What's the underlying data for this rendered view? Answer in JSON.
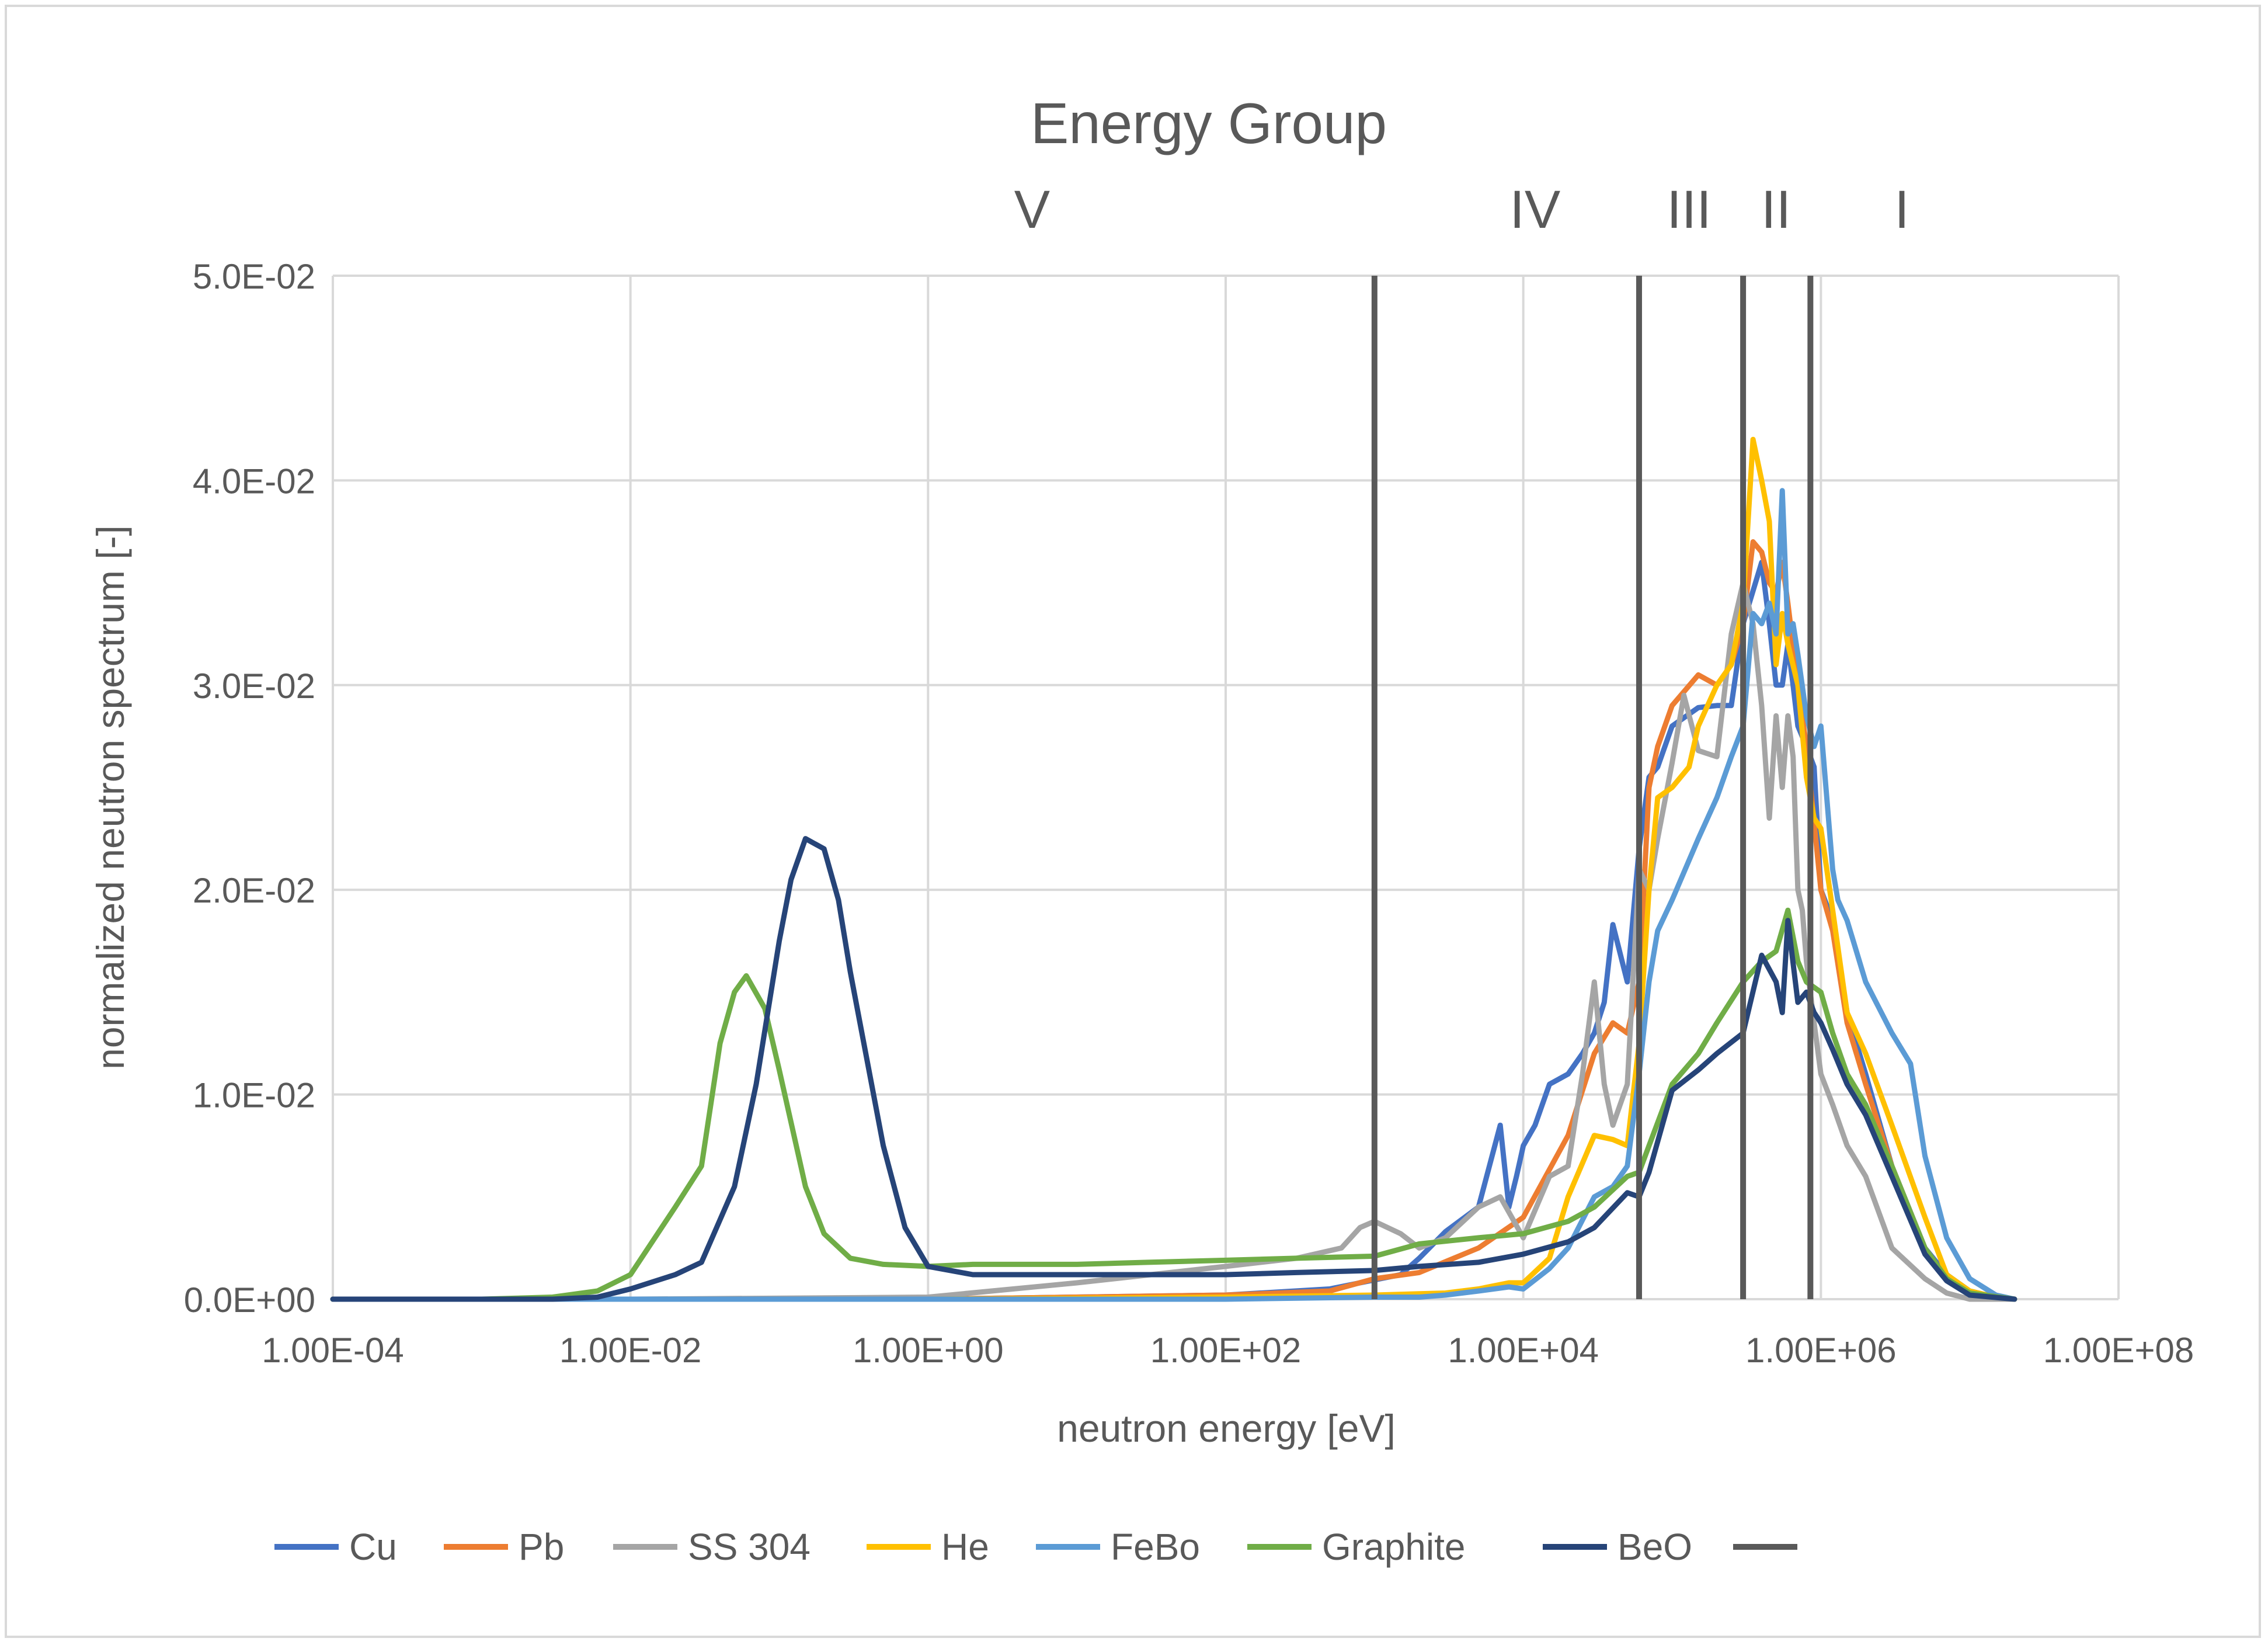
{
  "chart_data": {
    "type": "line",
    "title": "Energy Group",
    "group_labels": [
      {
        "label": "V",
        "energy": 5.0
      },
      {
        "label": "IV",
        "energy": 12000
      },
      {
        "label": "III",
        "energy": 130000
      },
      {
        "label": "II",
        "energy": 500000
      },
      {
        "label": "I",
        "energy": 3500000
      }
    ],
    "group_boundaries": [
      1000,
      60000,
      300000,
      850000
    ],
    "xlabel": "neutron energy [eV]",
    "ylabel": "normalized neutron spectrum [-]",
    "xscale": "log",
    "xlim": [
      0.0001,
      100000000
    ],
    "ylim": [
      0,
      0.05
    ],
    "x_ticks": [
      0.0001,
      0.01,
      1,
      100,
      10000,
      1000000,
      100000000
    ],
    "x_tick_labels": [
      "1.00E-04",
      "1.00E-02",
      "1.00E+00",
      "1.00E+02",
      "1.00E+04",
      "1.00E+06",
      "1.00E+08"
    ],
    "y_ticks": [
      0,
      0.01,
      0.02,
      0.03,
      0.04,
      0.05
    ],
    "y_tick_labels": [
      "0.0E+00",
      "1.0E-02",
      "2.0E-02",
      "3.0E-02",
      "4.0E-02",
      "5.0E-02"
    ],
    "grid": true,
    "legend_position": "bottom",
    "series": [
      {
        "name": "Cu",
        "color": "#4472C4",
        "x": [
          0.0001,
          0.01,
          1,
          100,
          500,
          1500,
          2000,
          3000,
          5000,
          7000,
          8000,
          9000,
          10000,
          12000,
          15000,
          20000,
          25000,
          30000,
          35000,
          40000,
          50000,
          60000,
          70000,
          80000,
          100000,
          150000,
          200000,
          250000,
          300000,
          400000,
          450000,
          500000,
          550000,
          600000,
          650000,
          700000,
          800000,
          900000,
          1000000,
          1200000,
          1500000,
          2000000,
          3000000,
          5000000,
          7000000,
          10000000,
          15000000,
          20000000
        ],
        "y": [
          0,
          0,
          0,
          0.0002,
          0.0005,
          0.0012,
          0.002,
          0.0033,
          0.0045,
          0.0085,
          0.0045,
          0.006,
          0.0075,
          0.0085,
          0.0105,
          0.011,
          0.012,
          0.013,
          0.0145,
          0.0183,
          0.0155,
          0.022,
          0.0255,
          0.026,
          0.028,
          0.0289,
          0.029,
          0.029,
          0.033,
          0.036,
          0.033,
          0.03,
          0.03,
          0.032,
          0.03,
          0.028,
          0.027,
          0.026,
          0.02,
          0.0185,
          0.014,
          0.011,
          0.0065,
          0.0025,
          0.0012,
          0.0004,
          0.0001,
          0
        ]
      },
      {
        "name": "Pb",
        "color": "#ED7D31",
        "x": [
          0.0001,
          0.01,
          1,
          100,
          500,
          1000,
          2000,
          5000,
          10000,
          20000,
          30000,
          40000,
          50000,
          60000,
          70000,
          80000,
          100000,
          150000,
          200000,
          250000,
          300000,
          350000,
          400000,
          450000,
          500000,
          550000,
          600000,
          700000,
          800000,
          1000000,
          1200000,
          1500000,
          2000000,
          3000000,
          5000000,
          7000000,
          10000000,
          20000000
        ],
        "y": [
          0,
          0,
          0,
          0.0002,
          0.0004,
          0.001,
          0.0013,
          0.0025,
          0.004,
          0.008,
          0.012,
          0.0135,
          0.013,
          0.0155,
          0.025,
          0.027,
          0.029,
          0.0305,
          0.03,
          0.031,
          0.033,
          0.037,
          0.0365,
          0.035,
          0.0345,
          0.036,
          0.034,
          0.03,
          0.027,
          0.02,
          0.018,
          0.0135,
          0.0105,
          0.0065,
          0.0025,
          0.001,
          0.0003,
          0
        ]
      },
      {
        "name": "SS 304",
        "color": "#A5A5A5",
        "x": [
          0.0001,
          0.01,
          1,
          10,
          100,
          300,
          600,
          800,
          1000,
          1500,
          2000,
          3000,
          5000,
          7000,
          10000,
          15000,
          20000,
          25000,
          30000,
          35000,
          40000,
          50000,
          60000,
          70000,
          80000,
          100000,
          120000,
          150000,
          200000,
          250000,
          300000,
          350000,
          400000,
          450000,
          500000,
          550000,
          600000,
          650000,
          700000,
          750000,
          800000,
          900000,
          1000000,
          1200000,
          1500000,
          2000000,
          3000000,
          5000000,
          7000000,
          10000000,
          20000000
        ],
        "y": [
          0,
          0,
          0.0001,
          0.0008,
          0.0016,
          0.002,
          0.0025,
          0.0035,
          0.0038,
          0.0032,
          0.0025,
          0.003,
          0.0045,
          0.005,
          0.003,
          0.006,
          0.0065,
          0.011,
          0.0155,
          0.0105,
          0.0085,
          0.0105,
          0.021,
          0.02,
          0.0225,
          0.0262,
          0.0295,
          0.0268,
          0.0265,
          0.0325,
          0.035,
          0.033,
          0.029,
          0.0235,
          0.0285,
          0.025,
          0.0285,
          0.0265,
          0.02,
          0.019,
          0.0165,
          0.0135,
          0.011,
          0.0095,
          0.0075,
          0.006,
          0.0025,
          0.001,
          0.0003,
          0,
          0
        ]
      },
      {
        "name": "He",
        "color": "#FFC000",
        "x": [
          0.0001,
          0.01,
          1,
          100,
          1000,
          3000,
          5000,
          8000,
          10000,
          15000,
          20000,
          30000,
          40000,
          50000,
          60000,
          70000,
          80000,
          100000,
          130000,
          150000,
          200000,
          250000,
          300000,
          350000,
          400000,
          450000,
          500000,
          550000,
          600000,
          700000,
          800000,
          900000,
          1000000,
          1200000,
          1500000,
          2000000,
          3000000,
          5000000,
          7000000,
          10000000,
          15000000,
          20000000
        ],
        "y": [
          0,
          0,
          0,
          0.0001,
          0.0002,
          0.0003,
          0.0005,
          0.0008,
          0.0008,
          0.002,
          0.005,
          0.008,
          0.0078,
          0.0075,
          0.0125,
          0.02,
          0.0245,
          0.025,
          0.026,
          0.028,
          0.03,
          0.031,
          0.034,
          0.042,
          0.04,
          0.038,
          0.031,
          0.0335,
          0.032,
          0.03,
          0.0255,
          0.0235,
          0.023,
          0.019,
          0.014,
          0.012,
          0.0085,
          0.004,
          0.0012,
          0.0004,
          0.0001,
          0
        ]
      },
      {
        "name": "FeBo",
        "color": "#5B9BD5",
        "x": [
          0.0001,
          0.01,
          1,
          100,
          1000,
          2000,
          3000,
          5000,
          8000,
          10000,
          15000,
          20000,
          30000,
          40000,
          50000,
          60000,
          70000,
          80000,
          100000,
          150000,
          200000,
          250000,
          300000,
          350000,
          400000,
          450000,
          500000,
          550000,
          600000,
          650000,
          700000,
          800000,
          900000,
          1000000,
          1200000,
          1300000,
          1500000,
          2000000,
          3000000,
          4000000,
          5000000,
          7000000,
          10000000,
          15000000,
          20000000
        ],
        "y": [
          0,
          0,
          0,
          0,
          0.0001,
          0.0001,
          0.0002,
          0.0004,
          0.0006,
          0.0005,
          0.0015,
          0.0025,
          0.005,
          0.0055,
          0.0065,
          0.011,
          0.0155,
          0.018,
          0.0195,
          0.0225,
          0.0245,
          0.0265,
          0.028,
          0.0335,
          0.033,
          0.034,
          0.0325,
          0.0395,
          0.0325,
          0.033,
          0.0315,
          0.0285,
          0.027,
          0.028,
          0.021,
          0.0195,
          0.0185,
          0.0155,
          0.013,
          0.0115,
          0.007,
          0.003,
          0.001,
          0.0002,
          0
        ]
      },
      {
        "name": "Graphite",
        "color": "#70AD47",
        "x": [
          0.0001,
          0.001,
          0.003,
          0.006,
          0.01,
          0.02,
          0.03,
          0.04,
          0.05,
          0.06,
          0.08,
          0.1,
          0.15,
          0.2,
          0.3,
          0.5,
          1,
          2,
          5,
          10,
          30,
          100,
          300,
          1000,
          2000,
          5000,
          10000,
          20000,
          30000,
          50000,
          60000,
          70000,
          100000,
          150000,
          200000,
          300000,
          400000,
          500000,
          600000,
          700000,
          800000,
          1000000,
          1200000,
          1500000,
          2000000,
          3000000,
          5000000,
          7000000,
          10000000,
          20000000
        ],
        "y": [
          0,
          0,
          0.0001,
          0.0004,
          0.0012,
          0.0045,
          0.0065,
          0.0125,
          0.015,
          0.0158,
          0.0142,
          0.0112,
          0.0055,
          0.0032,
          0.002,
          0.0017,
          0.0016,
          0.0017,
          0.0017,
          0.0017,
          0.0018,
          0.0019,
          0.002,
          0.0021,
          0.0027,
          0.003,
          0.0032,
          0.0038,
          0.0045,
          0.006,
          0.0062,
          0.0075,
          0.0105,
          0.012,
          0.0135,
          0.0155,
          0.0165,
          0.017,
          0.019,
          0.0165,
          0.0155,
          0.015,
          0.013,
          0.011,
          0.0095,
          0.0065,
          0.0025,
          0.001,
          0.0003,
          0
        ]
      },
      {
        "name": "BeO",
        "color": "#264478",
        "x": [
          0.0001,
          0.001,
          0.003,
          0.006,
          0.01,
          0.02,
          0.03,
          0.05,
          0.07,
          0.1,
          0.12,
          0.15,
          0.2,
          0.25,
          0.3,
          0.5,
          0.7,
          1,
          2,
          5,
          10,
          30,
          100,
          300,
          1000,
          2000,
          5000,
          10000,
          20000,
          30000,
          50000,
          60000,
          70000,
          100000,
          150000,
          200000,
          300000,
          400000,
          500000,
          550000,
          600000,
          700000,
          800000,
          900000,
          1000000,
          1200000,
          1500000,
          2000000,
          3000000,
          5000000,
          7000000,
          10000000,
          20000000
        ],
        "y": [
          0,
          0,
          0,
          0.0001,
          0.0005,
          0.0012,
          0.0018,
          0.0055,
          0.0105,
          0.0175,
          0.0205,
          0.0225,
          0.022,
          0.0195,
          0.016,
          0.0075,
          0.0035,
          0.0016,
          0.0012,
          0.0012,
          0.0012,
          0.0012,
          0.0012,
          0.0013,
          0.0014,
          0.0016,
          0.0018,
          0.0022,
          0.0028,
          0.0035,
          0.0052,
          0.005,
          0.0062,
          0.0102,
          0.0112,
          0.012,
          0.013,
          0.0168,
          0.0155,
          0.014,
          0.0185,
          0.0145,
          0.015,
          0.014,
          0.0135,
          0.0122,
          0.0105,
          0.009,
          0.006,
          0.0022,
          0.0009,
          0.0002,
          0
        ]
      }
    ],
    "boundary_line_color": "#595959"
  }
}
